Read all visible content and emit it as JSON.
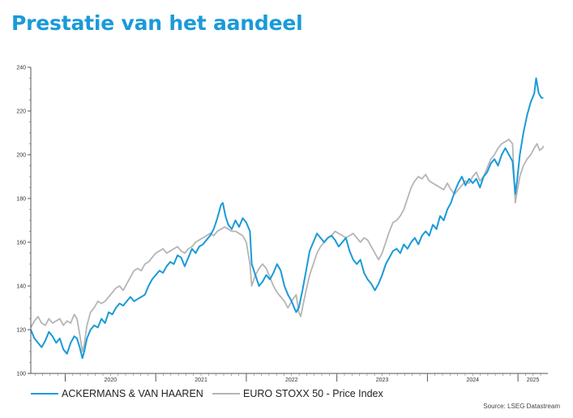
{
  "page": {
    "title": "Prestatie van het aandeel"
  },
  "chart_data": {
    "type": "line",
    "title": "Prestatie van het aandeel",
    "xlabel": "",
    "ylabel": "",
    "xlim": [
      2019.62,
      2025.33
    ],
    "ylim": [
      100,
      240
    ],
    "yticks": [
      100,
      120,
      140,
      160,
      180,
      200,
      220,
      240
    ],
    "ytick_labels": [
      "100",
      "120",
      "140",
      "160",
      "180",
      "200",
      "220",
      "240"
    ],
    "xticks": [
      2020,
      2021,
      2022,
      2023,
      2024,
      2025
    ],
    "xtick_labels": [
      "2020",
      "2021",
      "2022",
      "2023",
      "2024",
      "2025"
    ],
    "grid": false,
    "legend_position": "bottom",
    "source": "Source: LSEG Datastream",
    "series": [
      {
        "name": "ACKERMANS & VAN HAAREN",
        "color": "#1a9ad9",
        "points": [
          [
            2019.62,
            120
          ],
          [
            2019.66,
            116
          ],
          [
            2019.7,
            114
          ],
          [
            2019.74,
            112
          ],
          [
            2019.78,
            115
          ],
          [
            2019.82,
            119
          ],
          [
            2019.86,
            117
          ],
          [
            2019.9,
            114
          ],
          [
            2019.94,
            116
          ],
          [
            2019.98,
            111
          ],
          [
            2020.02,
            109
          ],
          [
            2020.06,
            114
          ],
          [
            2020.1,
            117
          ],
          [
            2020.13,
            116
          ],
          [
            2020.16,
            112
          ],
          [
            2020.19,
            107
          ],
          [
            2020.21,
            110
          ],
          [
            2020.24,
            116
          ],
          [
            2020.28,
            120
          ],
          [
            2020.32,
            122
          ],
          [
            2020.36,
            121
          ],
          [
            2020.4,
            125
          ],
          [
            2020.44,
            123
          ],
          [
            2020.48,
            128
          ],
          [
            2020.52,
            127
          ],
          [
            2020.56,
            130
          ],
          [
            2020.6,
            132
          ],
          [
            2020.64,
            131
          ],
          [
            2020.68,
            133
          ],
          [
            2020.72,
            135
          ],
          [
            2020.76,
            133
          ],
          [
            2020.8,
            134
          ],
          [
            2020.84,
            135
          ],
          [
            2020.88,
            136
          ],
          [
            2020.92,
            140
          ],
          [
            2020.96,
            143
          ],
          [
            2021.0,
            145
          ],
          [
            2021.04,
            147
          ],
          [
            2021.08,
            146
          ],
          [
            2021.12,
            149
          ],
          [
            2021.16,
            151
          ],
          [
            2021.2,
            150
          ],
          [
            2021.24,
            154
          ],
          [
            2021.28,
            153
          ],
          [
            2021.32,
            149
          ],
          [
            2021.36,
            153
          ],
          [
            2021.4,
            157
          ],
          [
            2021.44,
            155
          ],
          [
            2021.48,
            158
          ],
          [
            2021.52,
            159
          ],
          [
            2021.56,
            161
          ],
          [
            2021.6,
            163
          ],
          [
            2021.64,
            166
          ],
          [
            2021.68,
            171
          ],
          [
            2021.72,
            177
          ],
          [
            2021.74,
            178
          ],
          [
            2021.77,
            172
          ],
          [
            2021.8,
            168
          ],
          [
            2021.84,
            166
          ],
          [
            2021.88,
            170
          ],
          [
            2021.92,
            167
          ],
          [
            2021.96,
            171
          ],
          [
            2022.0,
            169
          ],
          [
            2022.04,
            165
          ],
          [
            2022.06,
            150
          ],
          [
            2022.1,
            145
          ],
          [
            2022.14,
            140
          ],
          [
            2022.18,
            142
          ],
          [
            2022.22,
            145
          ],
          [
            2022.26,
            143
          ],
          [
            2022.3,
            146
          ],
          [
            2022.34,
            150
          ],
          [
            2022.38,
            147
          ],
          [
            2022.42,
            140
          ],
          [
            2022.46,
            136
          ],
          [
            2022.5,
            133
          ],
          [
            2022.53,
            130
          ],
          [
            2022.55,
            128
          ],
          [
            2022.58,
            130
          ],
          [
            2022.62,
            138
          ],
          [
            2022.66,
            147
          ],
          [
            2022.7,
            156
          ],
          [
            2022.74,
            160
          ],
          [
            2022.78,
            164
          ],
          [
            2022.82,
            162
          ],
          [
            2022.86,
            160
          ],
          [
            2022.9,
            162
          ],
          [
            2022.94,
            163
          ],
          [
            2022.98,
            161
          ],
          [
            2023.02,
            158
          ],
          [
            2023.06,
            160
          ],
          [
            2023.1,
            162
          ],
          [
            2023.14,
            156
          ],
          [
            2023.18,
            152
          ],
          [
            2023.22,
            150
          ],
          [
            2023.26,
            152
          ],
          [
            2023.3,
            146
          ],
          [
            2023.34,
            143
          ],
          [
            2023.38,
            141
          ],
          [
            2023.42,
            138
          ],
          [
            2023.46,
            141
          ],
          [
            2023.5,
            145
          ],
          [
            2023.54,
            150
          ],
          [
            2023.58,
            153
          ],
          [
            2023.62,
            156
          ],
          [
            2023.66,
            157
          ],
          [
            2023.7,
            155
          ],
          [
            2023.74,
            159
          ],
          [
            2023.78,
            157
          ],
          [
            2023.82,
            160
          ],
          [
            2023.86,
            162
          ],
          [
            2023.9,
            159
          ],
          [
            2023.94,
            163
          ],
          [
            2023.98,
            165
          ],
          [
            2024.02,
            163
          ],
          [
            2024.06,
            168
          ],
          [
            2024.1,
            166
          ],
          [
            2024.14,
            172
          ],
          [
            2024.18,
            170
          ],
          [
            2024.22,
            175
          ],
          [
            2024.26,
            178
          ],
          [
            2024.3,
            183
          ],
          [
            2024.34,
            187
          ],
          [
            2024.38,
            190
          ],
          [
            2024.42,
            186
          ],
          [
            2024.46,
            189
          ],
          [
            2024.5,
            187
          ],
          [
            2024.54,
            189
          ],
          [
            2024.58,
            185
          ],
          [
            2024.62,
            190
          ],
          [
            2024.66,
            192
          ],
          [
            2024.7,
            196
          ],
          [
            2024.74,
            198
          ],
          [
            2024.78,
            195
          ],
          [
            2024.82,
            200
          ],
          [
            2024.86,
            203
          ],
          [
            2024.9,
            200
          ],
          [
            2024.94,
            197
          ],
          [
            2024.97,
            182
          ],
          [
            2024.99,
            188
          ],
          [
            2025.02,
            200
          ],
          [
            2025.06,
            210
          ],
          [
            2025.1,
            218
          ],
          [
            2025.14,
            224
          ],
          [
            2025.18,
            228
          ],
          [
            2025.2,
            235
          ],
          [
            2025.23,
            228
          ],
          [
            2025.26,
            226
          ],
          [
            2025.28,
            226
          ]
        ]
      },
      {
        "name": "EURO STOXX 50 - Price Index",
        "color": "#b5b5b5",
        "points": [
          [
            2019.62,
            121
          ],
          [
            2019.66,
            124
          ],
          [
            2019.7,
            126
          ],
          [
            2019.74,
            123
          ],
          [
            2019.78,
            122
          ],
          [
            2019.82,
            125
          ],
          [
            2019.86,
            123
          ],
          [
            2019.9,
            124
          ],
          [
            2019.94,
            125
          ],
          [
            2019.98,
            122
          ],
          [
            2020.02,
            124
          ],
          [
            2020.06,
            123
          ],
          [
            2020.1,
            127
          ],
          [
            2020.13,
            125
          ],
          [
            2020.16,
            118
          ],
          [
            2020.19,
            110
          ],
          [
            2020.21,
            113
          ],
          [
            2020.24,
            122
          ],
          [
            2020.28,
            128
          ],
          [
            2020.32,
            130
          ],
          [
            2020.36,
            133
          ],
          [
            2020.4,
            132
          ],
          [
            2020.44,
            133
          ],
          [
            2020.48,
            135
          ],
          [
            2020.52,
            137
          ],
          [
            2020.56,
            139
          ],
          [
            2020.6,
            140
          ],
          [
            2020.64,
            138
          ],
          [
            2020.68,
            141
          ],
          [
            2020.72,
            144
          ],
          [
            2020.76,
            147
          ],
          [
            2020.8,
            148
          ],
          [
            2020.84,
            147
          ],
          [
            2020.88,
            150
          ],
          [
            2020.92,
            151
          ],
          [
            2020.96,
            153
          ],
          [
            2021.0,
            155
          ],
          [
            2021.04,
            156
          ],
          [
            2021.08,
            157
          ],
          [
            2021.12,
            155
          ],
          [
            2021.16,
            156
          ],
          [
            2021.2,
            157
          ],
          [
            2021.24,
            158
          ],
          [
            2021.28,
            156
          ],
          [
            2021.32,
            155
          ],
          [
            2021.36,
            157
          ],
          [
            2021.4,
            158
          ],
          [
            2021.44,
            160
          ],
          [
            2021.48,
            161
          ],
          [
            2021.52,
            162
          ],
          [
            2021.56,
            163
          ],
          [
            2021.6,
            164
          ],
          [
            2021.64,
            163
          ],
          [
            2021.68,
            165
          ],
          [
            2021.72,
            166
          ],
          [
            2021.76,
            167
          ],
          [
            2021.8,
            166
          ],
          [
            2021.84,
            165
          ],
          [
            2021.88,
            165
          ],
          [
            2021.92,
            164
          ],
          [
            2021.96,
            163
          ],
          [
            2022.0,
            160
          ],
          [
            2022.04,
            150
          ],
          [
            2022.06,
            140
          ],
          [
            2022.1,
            145
          ],
          [
            2022.14,
            148
          ],
          [
            2022.18,
            150
          ],
          [
            2022.22,
            148
          ],
          [
            2022.26,
            144
          ],
          [
            2022.3,
            140
          ],
          [
            2022.34,
            137
          ],
          [
            2022.38,
            135
          ],
          [
            2022.42,
            133
          ],
          [
            2022.46,
            130
          ],
          [
            2022.5,
            133
          ],
          [
            2022.55,
            136
          ],
          [
            2022.58,
            128
          ],
          [
            2022.6,
            126
          ],
          [
            2022.62,
            130
          ],
          [
            2022.66,
            138
          ],
          [
            2022.7,
            145
          ],
          [
            2022.74,
            150
          ],
          [
            2022.78,
            155
          ],
          [
            2022.82,
            158
          ],
          [
            2022.86,
            160
          ],
          [
            2022.9,
            162
          ],
          [
            2022.94,
            163
          ],
          [
            2022.98,
            165
          ],
          [
            2023.02,
            164
          ],
          [
            2023.06,
            163
          ],
          [
            2023.1,
            162
          ],
          [
            2023.14,
            163
          ],
          [
            2023.18,
            164
          ],
          [
            2023.22,
            162
          ],
          [
            2023.26,
            160
          ],
          [
            2023.3,
            162
          ],
          [
            2023.34,
            161
          ],
          [
            2023.38,
            158
          ],
          [
            2023.42,
            155
          ],
          [
            2023.46,
            152
          ],
          [
            2023.5,
            155
          ],
          [
            2023.54,
            160
          ],
          [
            2023.58,
            165
          ],
          [
            2023.62,
            169
          ],
          [
            2023.66,
            170
          ],
          [
            2023.7,
            172
          ],
          [
            2023.74,
            175
          ],
          [
            2023.78,
            180
          ],
          [
            2023.82,
            185
          ],
          [
            2023.86,
            188
          ],
          [
            2023.9,
            190
          ],
          [
            2023.94,
            189
          ],
          [
            2023.98,
            191
          ],
          [
            2024.02,
            188
          ],
          [
            2024.06,
            187
          ],
          [
            2024.1,
            186
          ],
          [
            2024.14,
            185
          ],
          [
            2024.18,
            184
          ],
          [
            2024.22,
            187
          ],
          [
            2024.26,
            184
          ],
          [
            2024.3,
            182
          ],
          [
            2024.34,
            184
          ],
          [
            2024.38,
            186
          ],
          [
            2024.42,
            188
          ],
          [
            2024.46,
            187
          ],
          [
            2024.5,
            190
          ],
          [
            2024.54,
            192
          ],
          [
            2024.58,
            188
          ],
          [
            2024.62,
            190
          ],
          [
            2024.66,
            194
          ],
          [
            2024.7,
            198
          ],
          [
            2024.74,
            200
          ],
          [
            2024.78,
            203
          ],
          [
            2024.82,
            205
          ],
          [
            2024.86,
            206
          ],
          [
            2024.9,
            207
          ],
          [
            2024.94,
            205
          ],
          [
            2024.97,
            178
          ],
          [
            2024.99,
            183
          ],
          [
            2025.02,
            190
          ],
          [
            2025.06,
            195
          ],
          [
            2025.1,
            198
          ],
          [
            2025.14,
            200
          ],
          [
            2025.18,
            203
          ],
          [
            2025.21,
            205
          ],
          [
            2025.24,
            202
          ],
          [
            2025.27,
            203
          ],
          [
            2025.28,
            204
          ]
        ]
      }
    ]
  }
}
